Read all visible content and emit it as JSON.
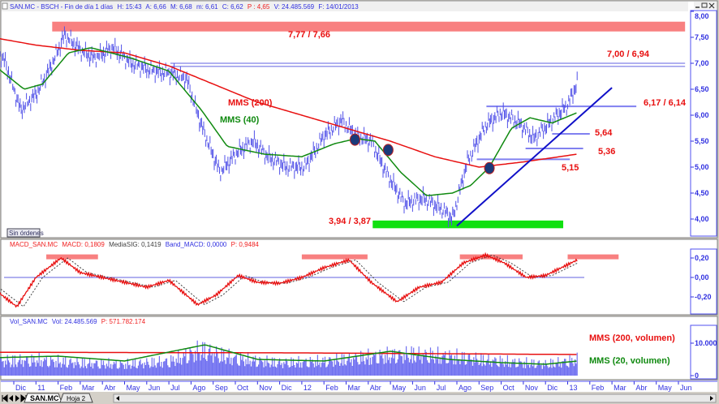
{
  "header": {
    "symbol": "SAN.MC - BSCH - Fin de día 1 días",
    "h": "H: 15:43",
    "a": "A: 6,66",
    "m": "M: 6,68",
    "mn": "m: 6,61",
    "c": "C: 6,62",
    "p": "P : 4,65",
    "v": "V: 24.485.569",
    "f": "F: 14/01/2013"
  },
  "macd_header": {
    "name": "MACD_SAN.MC",
    "macd": "MACD: 0,1809",
    "sig": "MediaSIG: 0,1419",
    "band": "Band_MACD: 0,0000",
    "p": "P: 0,9484"
  },
  "vol_header": {
    "name": "Vol_SAN.MC",
    "vol": "Vol: 24.485.569",
    "p": "P: 571.782.174"
  },
  "sin_ordenes": "Sin órdenes",
  "tabs": [
    "SAN.MC",
    "Hoja 2"
  ],
  "colors": {
    "price": "#5050e8",
    "mms200": "#e81010",
    "mms40": "#108a10",
    "band_red": "#f88080",
    "band_green": "#10e010",
    "trend": "#1010c8",
    "axis": "#3030e0"
  },
  "chart_data": [
    {
      "type": "line",
      "panel": "price",
      "yticks": [
        "8,00",
        "7,50",
        "7,00",
        "6,50",
        "6,00",
        "5,50",
        "5,00",
        "4,50",
        "4,00"
      ],
      "ylim": [
        3.75,
        8.0
      ],
      "x_ticks": [
        "Dic",
        "11",
        "Feb",
        "Mar",
        "Abr",
        "May",
        "Jun",
        "Jul",
        "Ago",
        "Sep",
        "Oct",
        "Nov",
        "Dic",
        "12",
        "Feb",
        "Mar",
        "Abr",
        "May",
        "Jun",
        "Jul",
        "Ago",
        "Sep",
        "Oct",
        "Nov",
        "Dic",
        "13",
        "Feb",
        "Mar",
        "Abr",
        "May",
        "Jun"
      ],
      "series": [
        {
          "name": "price",
          "dates": [
            "2010-11-01",
            "2010-11-20",
            "2010-12-10",
            "2011-01-01",
            "2011-01-20",
            "2011-02-10",
            "2011-03-01",
            "2011-03-20",
            "2011-04-15",
            "2011-05-10",
            "2011-06-10",
            "2011-07-05",
            "2011-07-25",
            "2011-08-15",
            "2011-09-10",
            "2011-10-05",
            "2011-10-25",
            "2011-11-15",
            "2011-12-10",
            "2012-01-05",
            "2012-02-01",
            "2012-02-25",
            "2012-03-15",
            "2012-04-05",
            "2012-04-25",
            "2012-05-20",
            "2012-06-15",
            "2012-07-10",
            "2012-07-25",
            "2012-08-15",
            "2012-09-10",
            "2012-10-01",
            "2012-10-25",
            "2012-11-15",
            "2012-12-10",
            "2013-01-01",
            "2013-01-14"
          ],
          "values": [
            7.4,
            7.0,
            6.1,
            6.4,
            6.9,
            7.55,
            7.25,
            7.1,
            7.3,
            7.0,
            6.85,
            6.8,
            6.7,
            5.8,
            4.9,
            5.3,
            5.5,
            5.2,
            5.0,
            5.0,
            5.6,
            5.9,
            5.6,
            5.5,
            4.9,
            4.3,
            4.4,
            4.2,
            4.0,
            5.1,
            5.8,
            6.05,
            5.85,
            5.55,
            5.9,
            6.2,
            6.62
          ]
        },
        {
          "name": "MMS (200)",
          "dates": [
            "2010-11-01",
            "2011-01-01",
            "2011-03-01",
            "2011-05-01",
            "2011-07-01",
            "2011-09-01",
            "2011-11-01",
            "2012-01-01",
            "2012-03-01",
            "2012-05-01",
            "2012-07-01",
            "2012-09-01",
            "2012-11-01",
            "2013-01-14"
          ],
          "values": [
            7.5,
            7.35,
            7.25,
            7.2,
            6.95,
            6.6,
            6.25,
            6.0,
            5.75,
            5.5,
            5.2,
            5.0,
            5.1,
            5.25
          ]
        },
        {
          "name": "MMS (40)",
          "dates": [
            "2010-11-01",
            "2010-12-15",
            "2011-01-10",
            "2011-02-15",
            "2011-03-15",
            "2011-05-10",
            "2011-07-01",
            "2011-08-15",
            "2011-09-20",
            "2011-11-10",
            "2012-01-01",
            "2012-02-15",
            "2012-03-15",
            "2012-04-10",
            "2012-05-15",
            "2012-06-20",
            "2012-07-25",
            "2012-08-20",
            "2012-09-15",
            "2012-10-15",
            "2012-11-10",
            "2012-12-10",
            "2013-01-14"
          ],
          "values": [
            7.0,
            6.5,
            6.6,
            7.2,
            7.3,
            7.1,
            6.85,
            6.1,
            5.4,
            5.25,
            5.2,
            5.45,
            5.55,
            5.5,
            4.9,
            4.45,
            4.5,
            4.65,
            5.0,
            5.75,
            5.95,
            5.85,
            6.05
          ]
        }
      ],
      "annotations": [
        {
          "type": "band",
          "label": "7,77 / 7,66",
          "top": 7.77,
          "bottom": 7.66,
          "from": "2011-01-23",
          "to": "2013-06-10",
          "color": "band_red"
        },
        {
          "type": "double-line",
          "label": "7,00 / 6,94",
          "levels": [
            7.0,
            6.94
          ],
          "from": "2011-07-03",
          "to": "2013-06-10"
        },
        {
          "type": "band",
          "label": "3,94 / 3,87",
          "top": 3.94,
          "bottom": 3.87,
          "from": "2012-04-07",
          "to": "2012-12-25",
          "color": "band_green"
        },
        {
          "type": "line",
          "label": "6,17 / 6,14",
          "level": 6.17,
          "from": "2012-09-11",
          "to": "2013-04-04"
        },
        {
          "type": "line",
          "label": "5,64",
          "level": 5.64,
          "from": "2012-12-10",
          "to": "2013-02-01"
        },
        {
          "type": "line",
          "label": "5,36",
          "level": 5.36,
          "from": "2012-11-04",
          "to": "2013-01-22"
        },
        {
          "type": "line",
          "label": "5,15",
          "level": 5.15,
          "from": "2012-08-28",
          "to": "2013-01-04"
        },
        {
          "type": "trendline",
          "from": [
            "2012-08-01",
            3.87
          ],
          "to": [
            "2013-03-01",
            6.53
          ]
        },
        {
          "type": "cross",
          "dates": [
            "2012-03-13",
            "2012-04-28",
            "2012-09-15"
          ],
          "values": [
            5.53,
            5.33,
            4.98
          ]
        }
      ],
      "labels": {
        "mms200": "MMS (200)",
        "mms40": "MMS (40)"
      }
    },
    {
      "type": "line",
      "panel": "macd",
      "yticks": [
        "0,20",
        "0,00",
        "-0,20"
      ],
      "ylim": [
        -0.35,
        0.3
      ],
      "series": [
        {
          "name": "MACD",
          "dates": [
            "2010-11-01",
            "2010-12-05",
            "2011-01-01",
            "2011-02-05",
            "2011-03-01",
            "2011-04-01",
            "2011-05-01",
            "2011-06-01",
            "2011-07-01",
            "2011-08-10",
            "2011-09-05",
            "2011-10-05",
            "2011-11-01",
            "2011-12-01",
            "2012-01-01",
            "2012-02-01",
            "2012-03-05",
            "2012-04-05",
            "2012-05-10",
            "2012-06-10",
            "2012-07-10",
            "2012-08-10",
            "2012-09-10",
            "2012-10-05",
            "2012-11-05",
            "2012-12-01",
            "2013-01-14"
          ],
          "values": [
            -0.1,
            -0.3,
            0.0,
            0.2,
            0.05,
            0.0,
            -0.05,
            -0.1,
            -0.03,
            -0.28,
            -0.18,
            0.02,
            -0.05,
            -0.06,
            0.0,
            0.1,
            0.18,
            -0.05,
            -0.25,
            -0.1,
            -0.05,
            0.15,
            0.23,
            0.15,
            0.0,
            0.02,
            0.18
          ]
        }
      ],
      "bands": [
        [
          "2011-01-15",
          "2011-03-25"
        ],
        [
          "2012-01-01",
          "2012-03-30"
        ],
        [
          "2012-08-05",
          "2012-10-30"
        ],
        [
          "2013-01-01",
          "2013-03-10"
        ]
      ],
      "band_level": 0.22,
      "zero_line": 0.0
    },
    {
      "type": "bar",
      "panel": "volume",
      "yticks": [
        "10.000",
        "0"
      ],
      "ylim": [
        0,
        15000
      ],
      "series": [
        {
          "name": "Vol",
          "dates": [
            "2010-11-01",
            "2011-01-01",
            "2011-03-01",
            "2011-05-01",
            "2011-07-01",
            "2011-08-15",
            "2011-10-01",
            "2011-12-01",
            "2012-02-01",
            "2012-04-01",
            "2012-06-01",
            "2012-08-01",
            "2012-10-01",
            "2012-12-01",
            "2013-01-14"
          ],
          "values": [
            5000,
            5500,
            4500,
            4000,
            5000,
            9000,
            6000,
            4500,
            5000,
            6500,
            7500,
            6500,
            5000,
            4000,
            5500
          ]
        },
        {
          "name": "MMS (200, volumen)",
          "dates": [
            "2010-11-01",
            "2012-01-01",
            "2013-01-14"
          ],
          "values": [
            7200,
            7000,
            6500
          ]
        },
        {
          "name": "MMS (20, volumen)",
          "dates": [
            "2010-11-01",
            "2011-02-01",
            "2011-05-01",
            "2011-08-20",
            "2011-11-01",
            "2012-02-01",
            "2012-05-01",
            "2012-07-20",
            "2012-10-01",
            "2012-12-01",
            "2013-01-14"
          ],
          "values": [
            5500,
            6000,
            4500,
            9500,
            5000,
            4500,
            7500,
            5000,
            4000,
            3500,
            4500
          ]
        }
      ]
    }
  ]
}
